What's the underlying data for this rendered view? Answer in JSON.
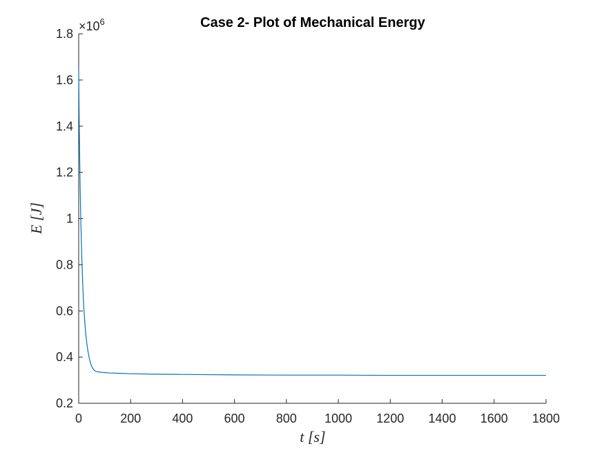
{
  "chart_data": {
    "type": "line",
    "title": "Case 2- Plot of Mechanical Energy",
    "xlabel": "t [s]",
    "ylabel": "E [J]",
    "y_multiplier": "×10",
    "y_multiplier_exponent": "6",
    "xlim": [
      0,
      1800
    ],
    "ylim": [
      0.2,
      1.8
    ],
    "x_ticks": [
      "0",
      "200",
      "400",
      "600",
      "800",
      "1000",
      "1200",
      "1400",
      "1600",
      "1800"
    ],
    "y_ticks": [
      "0.2",
      "0.4",
      "0.6",
      "0.8",
      "1",
      "1.2",
      "1.4",
      "1.6",
      "1.8"
    ],
    "grid": false,
    "line_color": "#0072bd",
    "series": [
      {
        "x": [
          0,
          1,
          2,
          3,
          4,
          5,
          6,
          8,
          10,
          12,
          15,
          18,
          20,
          25,
          30,
          35,
          40,
          45,
          50,
          55,
          60,
          65,
          70,
          75,
          80,
          90,
          100,
          120,
          150,
          200,
          300,
          400,
          500,
          600,
          800,
          1000,
          1200,
          1400,
          1600,
          1800
        ],
        "y": [
          1.65,
          1.52,
          1.42,
          1.33,
          1.25,
          1.18,
          1.11,
          1.0,
          0.91,
          0.83,
          0.73,
          0.65,
          0.61,
          0.53,
          0.47,
          0.43,
          0.4,
          0.375,
          0.36,
          0.35,
          0.343,
          0.339,
          0.337,
          0.336,
          0.335,
          0.334,
          0.333,
          0.331,
          0.33,
          0.328,
          0.326,
          0.325,
          0.324,
          0.323,
          0.322,
          0.322,
          0.321,
          0.321,
          0.321,
          0.321
        ]
      }
    ]
  }
}
